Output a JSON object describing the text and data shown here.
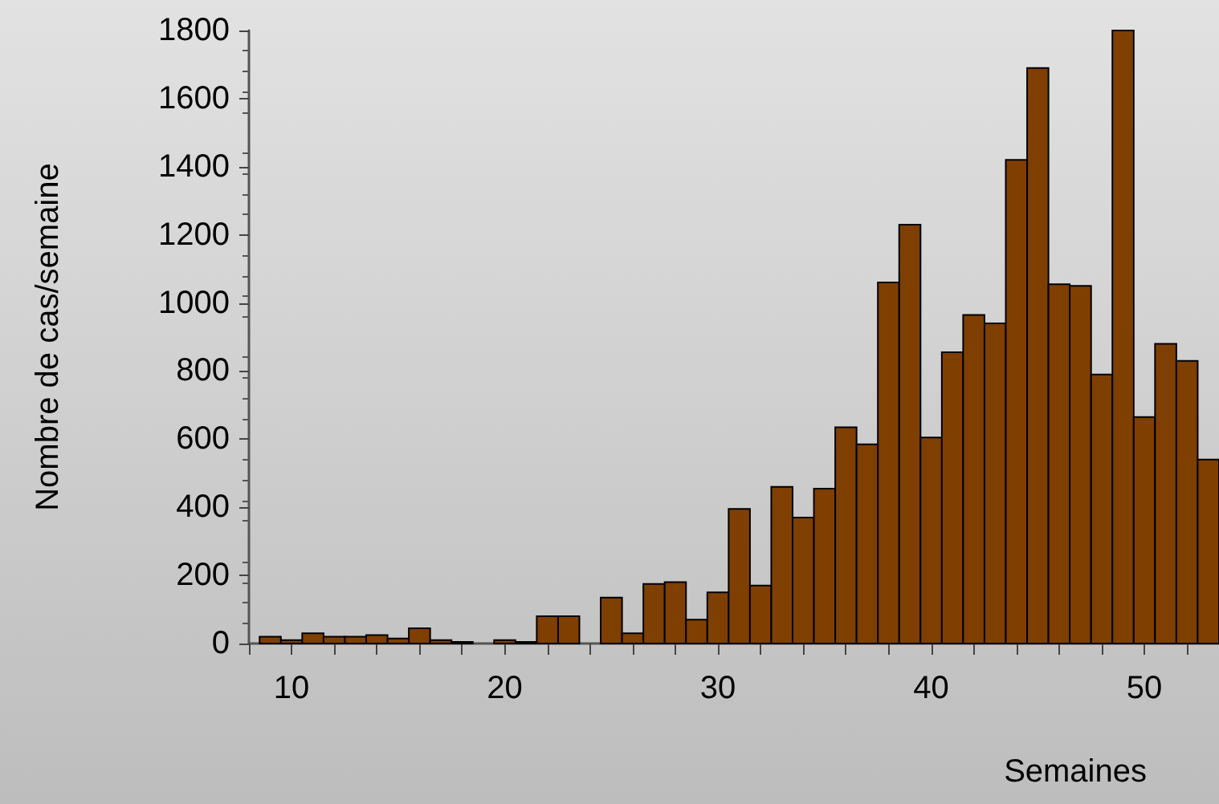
{
  "chart_data": {
    "type": "histogram",
    "xlabel": "Semaines",
    "ylabel": "Nombre de cas/semaine",
    "color": "#7f3f00",
    "bins": [
      8.5,
      9.5,
      10.5,
      11.5,
      12.5,
      13.5,
      14.5,
      15.5,
      16.5,
      17.5,
      18.5,
      19.5,
      20.5,
      21.5,
      22.5,
      23.5,
      24.5,
      25.5,
      26.5,
      27.5,
      28.5,
      29.5,
      30.5,
      31.5,
      32.5,
      33.5,
      34.5,
      35.5,
      36.5,
      37.5,
      38.5,
      39.5,
      40.5,
      41.5,
      42.5,
      43.5,
      44.5,
      45.5,
      46.5,
      47.5,
      48.5,
      49.5,
      50.5,
      51.5,
      52.5,
      53.5
    ],
    "values": [
      20,
      10,
      30,
      20,
      20,
      25,
      15,
      45,
      10,
      5,
      0,
      10,
      5,
      80,
      80,
      0,
      135,
      30,
      175,
      180,
      70,
      150,
      395,
      170,
      460,
      370,
      455,
      635,
      585,
      1060,
      1230,
      605,
      855,
      965,
      940,
      1420,
      1690,
      1055,
      1050,
      790,
      1800,
      665,
      880,
      830,
      540
    ],
    "xlim": [
      8,
      53.5
    ],
    "xticks": [
      {
        "value": 8,
        "label": null
      },
      10,
      {
        "value": 12,
        "label": null
      },
      {
        "value": 14,
        "label": null
      },
      {
        "value": 16,
        "label": null
      },
      {
        "value": 18,
        "label": null
      },
      20,
      {
        "value": 22,
        "label": null
      },
      {
        "value": 24,
        "label": null
      },
      {
        "value": 26,
        "label": null
      },
      {
        "value": 28,
        "label": null
      },
      30,
      {
        "value": 32,
        "label": null
      },
      {
        "value": 34,
        "label": null
      },
      {
        "value": 36,
        "label": null
      },
      {
        "value": 38,
        "label": null
      },
      40,
      {
        "value": 42,
        "label": null
      },
      {
        "value": 44,
        "label": null
      },
      {
        "value": 46,
        "label": null
      },
      {
        "value": 48,
        "label": null
      },
      50,
      {
        "value": 52,
        "label": null
      }
    ],
    "ylim": [
      0,
      1800
    ],
    "yticks": [
      0,
      200,
      400,
      600,
      800,
      1000,
      1200,
      1400,
      1600,
      1800
    ],
    "grid": false
  }
}
